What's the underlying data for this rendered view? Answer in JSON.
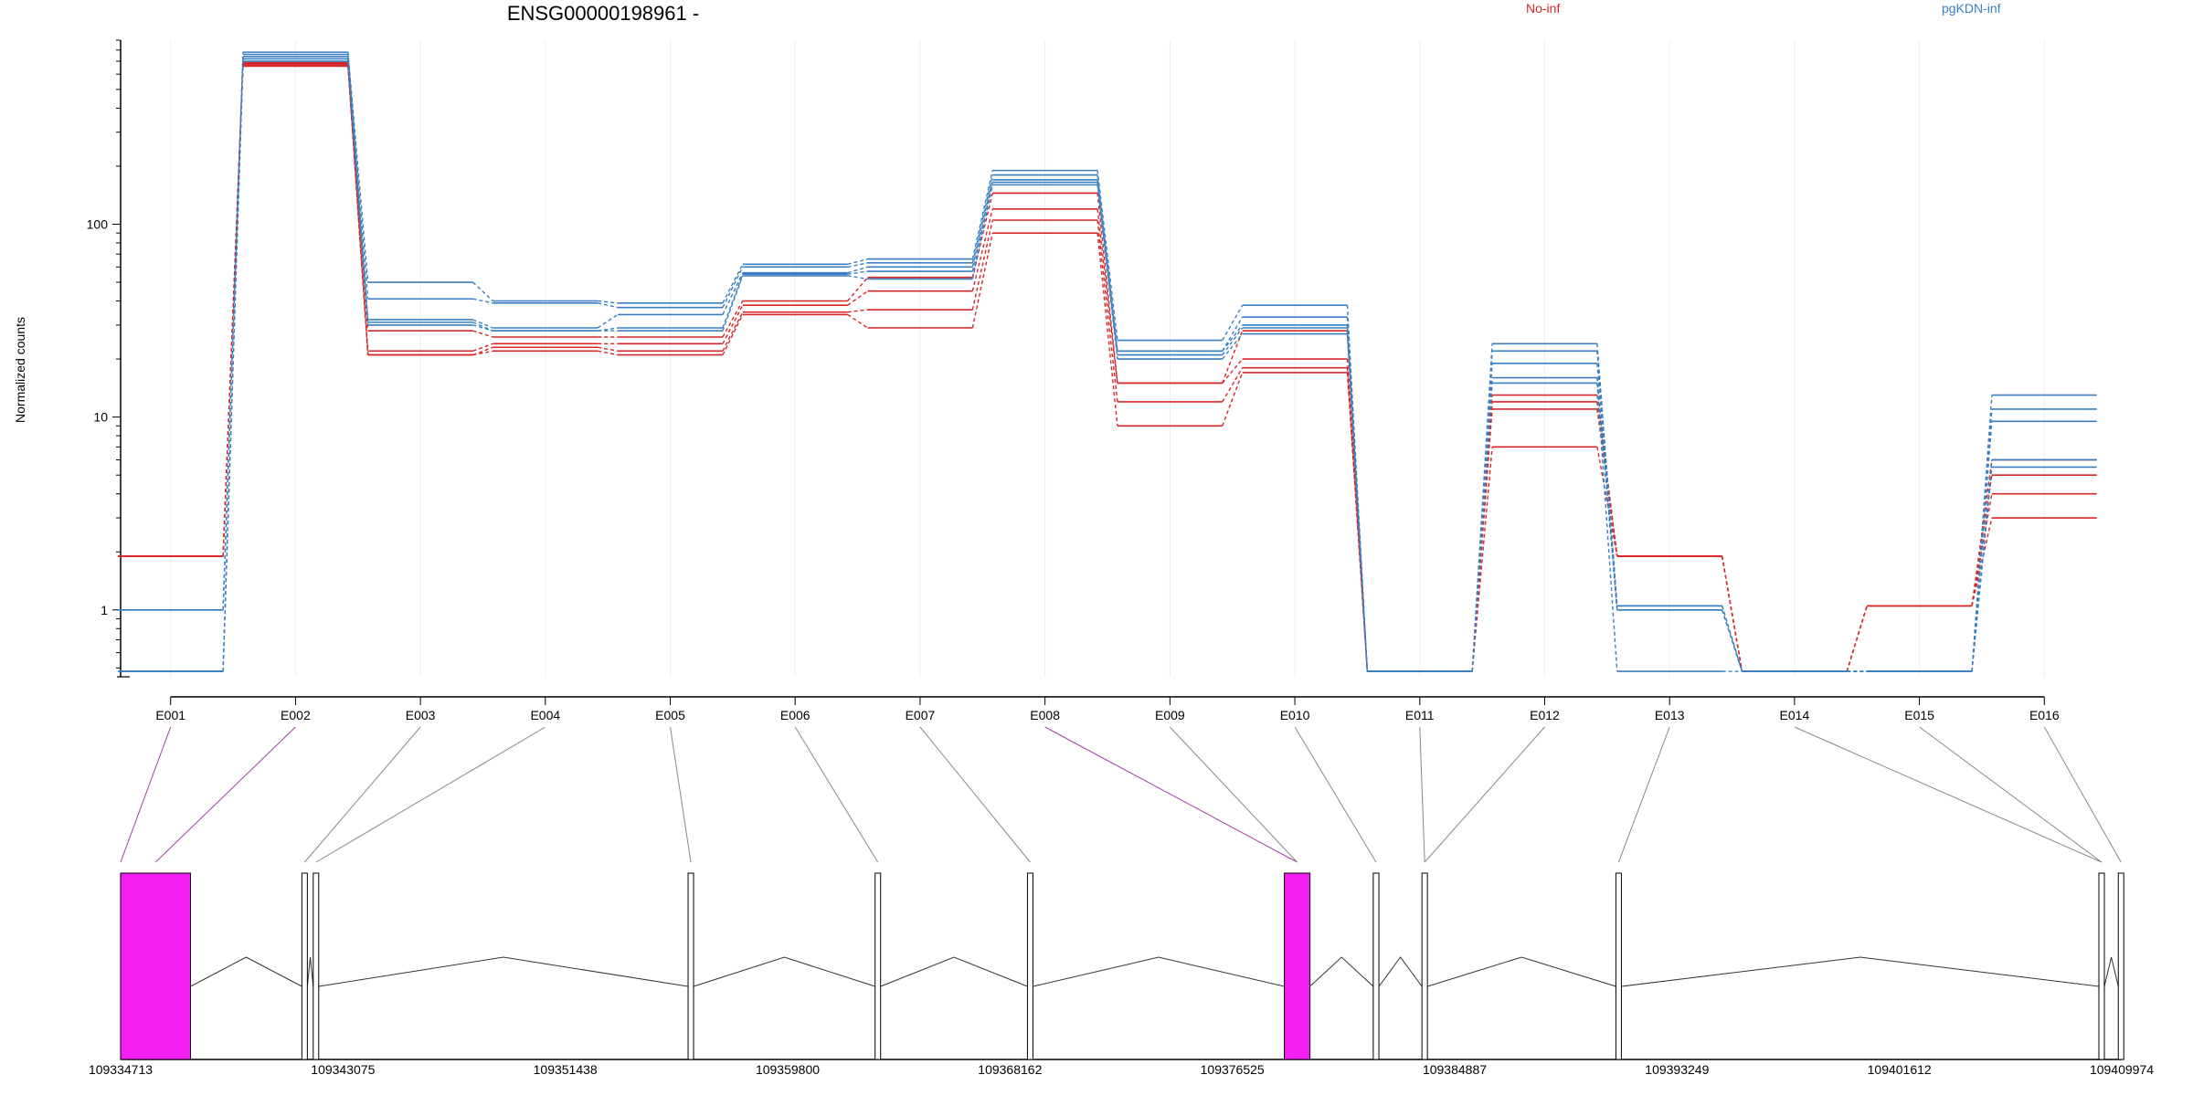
{
  "chart_data": {
    "type": "line",
    "title": "ENSG00000198961 -",
    "ylabel": "Normalized counts",
    "yscale": "log",
    "ylim": [
      0.45,
      900
    ],
    "yticks": [
      1,
      10,
      100
    ],
    "categories": [
      "E001",
      "E002",
      "E003",
      "E004",
      "E005",
      "E006",
      "E007",
      "E008",
      "E009",
      "E010",
      "E011",
      "E012",
      "E013",
      "E014",
      "E015",
      "E016"
    ],
    "legend": [
      {
        "name": "No-inf",
        "color": "#d62728"
      },
      {
        "name": "pgKDN-inf",
        "color": "#3a7fc1"
      }
    ],
    "legend_position": "top",
    "series": [
      {
        "group": "No-inf",
        "values": [
          1.9,
          690,
          28,
          26,
          26,
          40,
          53,
          145,
          15,
          28,
          0.48,
          13,
          1.9,
          0.48,
          1.05,
          6
        ]
      },
      {
        "group": "No-inf",
        "values": [
          1.9,
          680,
          22,
          24,
          24,
          38,
          45,
          120,
          15,
          20,
          0.48,
          12,
          1.9,
          0.48,
          1.05,
          5
        ]
      },
      {
        "group": "No-inf",
        "values": [
          1.9,
          670,
          21,
          23,
          22,
          35,
          36,
          105,
          12,
          18,
          0.48,
          11,
          1.9,
          0.48,
          1.05,
          4
        ]
      },
      {
        "group": "No-inf",
        "values": [
          1.9,
          660,
          21,
          22,
          21,
          34,
          29,
          90,
          9,
          17,
          0.48,
          7,
          1.9,
          0.48,
          1.05,
          3
        ]
      },
      {
        "group": "pgKDN-inf",
        "values": [
          1.0,
          780,
          50,
          40,
          39,
          62,
          66,
          190,
          25,
          38,
          0.48,
          24,
          1.05,
          0.48,
          0.48,
          13
        ]
      },
      {
        "group": "pgKDN-inf",
        "values": [
          1.0,
          760,
          41,
          39,
          37,
          60,
          63,
          180,
          22,
          33,
          0.48,
          22,
          1.05,
          0.48,
          0.48,
          11
        ]
      },
      {
        "group": "pgKDN-inf",
        "values": [
          0.48,
          740,
          32,
          29,
          34,
          56,
          60,
          170,
          22,
          30,
          0.48,
          19,
          1.0,
          0.48,
          0.48,
          9.5
        ]
      },
      {
        "group": "pgKDN-inf",
        "values": [
          0.48,
          720,
          31,
          28,
          29,
          55,
          57,
          165,
          21,
          29,
          0.48,
          16,
          1.0,
          0.48,
          0.48,
          6
        ]
      },
      {
        "group": "pgKDN-inf",
        "values": [
          0.48,
          700,
          30,
          28,
          28,
          54,
          52,
          160,
          20,
          27,
          0.48,
          15,
          0.48,
          0.48,
          0.48,
          5.5
        ]
      }
    ],
    "gene_model": {
      "coordinate_labels": [
        "109334713",
        "109343075",
        "109351438",
        "109359800",
        "109368162",
        "109376525",
        "109384887",
        "109393249",
        "109401612",
        "109409974"
      ],
      "coordinate_range": [
        109334713,
        109409974
      ],
      "exons": [
        {
          "id": "E001",
          "start": 109334713,
          "end": 109337342,
          "highlighted": true
        },
        {
          "id": "E002",
          "start": 109334713,
          "end": 109337342,
          "highlighted": true
        },
        {
          "id": "E003",
          "start": 109341530,
          "end": 109341701,
          "highlighted": false
        },
        {
          "id": "E004",
          "start": 109341957,
          "end": 109342090,
          "highlighted": false
        },
        {
          "id": "E005",
          "start": 109356056,
          "end": 109356141,
          "highlighted": false
        },
        {
          "id": "E006",
          "start": 109363089,
          "end": 109363260,
          "highlighted": false
        },
        {
          "id": "E007",
          "start": 109368819,
          "end": 109368947,
          "highlighted": false
        },
        {
          "id": "E008",
          "start": 109378481,
          "end": 109379444,
          "highlighted": true
        },
        {
          "id": "E009",
          "start": 109378481,
          "end": 109379444,
          "highlighted": false
        },
        {
          "id": "E010",
          "start": 109381824,
          "end": 109382037,
          "highlighted": false
        },
        {
          "id": "E011",
          "start": 109383655,
          "end": 109383762,
          "highlighted": false
        },
        {
          "id": "E012",
          "start": 109383655,
          "end": 109383762,
          "highlighted": false
        },
        {
          "id": "E013",
          "start": 109390950,
          "end": 109391079,
          "highlighted": false
        },
        {
          "id": "E014",
          "start": 109409115,
          "end": 109409287,
          "highlighted": false
        },
        {
          "id": "E015",
          "start": 109409115,
          "end": 109409287,
          "highlighted": false
        },
        {
          "id": "E016",
          "start": 109409845,
          "end": 109409974,
          "highlighted": false
        }
      ]
    }
  },
  "colors": {
    "no_inf": "#d62728",
    "pgkdn_inf": "#3a7fc1",
    "highlight_exon": "#f21ef2",
    "highlight_link": "#a040a0"
  }
}
